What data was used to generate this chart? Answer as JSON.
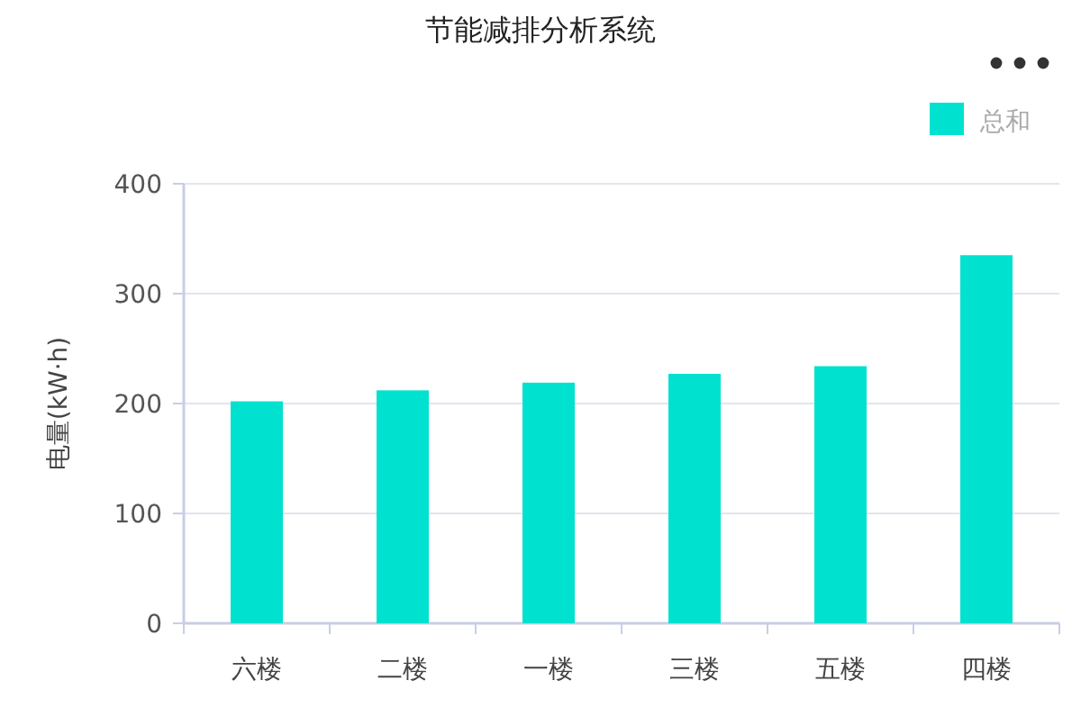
{
  "chart_data": {
    "type": "bar",
    "title": "节能减排分析系统",
    "ylabel": "电量(kW·h)",
    "categories": [
      "六楼",
      "二楼",
      "一楼",
      "三楼",
      "五楼",
      "四楼"
    ],
    "series": [
      {
        "name": "总和",
        "color": "#00e1d0",
        "values": [
          202,
          212,
          219,
          227,
          234,
          335
        ]
      }
    ],
    "ylim": [
      0,
      400
    ],
    "yticks": [
      0,
      100,
      200,
      300,
      400
    ],
    "grid": "y",
    "legend": "top right"
  }
}
